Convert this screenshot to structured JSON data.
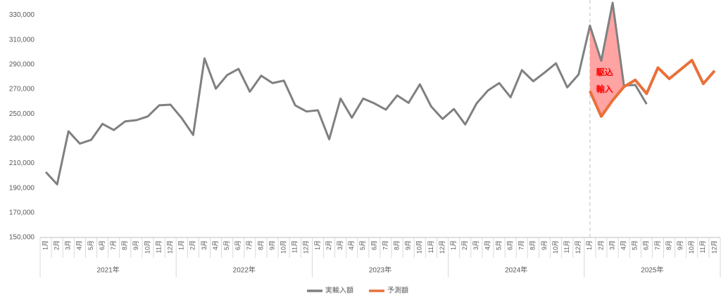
{
  "chart_data": {
    "type": "line",
    "categories": [
      "1月",
      "2月",
      "3月",
      "4月",
      "5月",
      "6月",
      "7月",
      "8月",
      "9月",
      "10月",
      "11月",
      "12月",
      "1月",
      "2月",
      "3月",
      "4月",
      "5月",
      "6月",
      "7月",
      "8月",
      "9月",
      "10月",
      "11月",
      "12月",
      "1月",
      "2月",
      "3月",
      "4月",
      "5月",
      "6月",
      "7月",
      "8月",
      "9月",
      "10月",
      "11月",
      "12月",
      "1月",
      "2月",
      "3月",
      "4月",
      "5月",
      "6月",
      "7月",
      "8月",
      "9月",
      "10月",
      "11月",
      "12月",
      "1月",
      "2月",
      "3月",
      "4月",
      "5月",
      "6月",
      "7月",
      "8月",
      "9月",
      "10月",
      "11月",
      "12月"
    ],
    "year_groups": [
      "2021年",
      "2022年",
      "2023年",
      "2024年",
      "2025年"
    ],
    "series": [
      {
        "name": "実輸入額",
        "color": "#808080",
        "values": [
          203000,
          193000,
          236000,
          226000,
          229000,
          242000,
          237000,
          244000,
          245000,
          248000,
          257000,
          257500,
          246500,
          233000,
          295000,
          270500,
          281500,
          286500,
          268000,
          281000,
          275000,
          277000,
          257000,
          252000,
          253000,
          229500,
          262500,
          247000,
          262500,
          258500,
          253500,
          265000,
          259000,
          274000,
          256000,
          246000,
          254000,
          241500,
          258500,
          269000,
          275000,
          263500,
          285500,
          276500,
          283500,
          291000,
          271500,
          282000,
          321500,
          293000,
          340000,
          273000,
          273500,
          258000,
          null,
          null,
          null,
          null,
          null,
          null
        ]
      },
      {
        "name": "予測額",
        "color": "#e9703a",
        "values": [
          null,
          null,
          null,
          null,
          null,
          null,
          null,
          null,
          null,
          null,
          null,
          null,
          null,
          null,
          null,
          null,
          null,
          null,
          null,
          null,
          null,
          null,
          null,
          null,
          null,
          null,
          null,
          null,
          null,
          null,
          null,
          null,
          null,
          null,
          null,
          null,
          null,
          null,
          null,
          null,
          null,
          null,
          null,
          null,
          null,
          null,
          null,
          null,
          268500,
          248000,
          261000,
          272000,
          277500,
          266500,
          287500,
          278500,
          286000,
          293500,
          274500,
          285000
        ]
      }
    ],
    "annotations": [
      "駆込",
      "輸入"
    ],
    "ylim": [
      150000,
      340000
    ],
    "yticks": [
      {
        "value": 150000,
        "label": "150,000"
      },
      {
        "value": 170000,
        "label": "170,000"
      },
      {
        "value": 190000,
        "label": "190,000"
      },
      {
        "value": 210000,
        "label": "210,000"
      },
      {
        "value": 230000,
        "label": "230,000"
      },
      {
        "value": 250000,
        "label": "250,000"
      },
      {
        "value": 270000,
        "label": "270,000"
      },
      {
        "value": 290000,
        "label": "290,000"
      },
      {
        "value": 310000,
        "label": "310,000"
      },
      {
        "value": 330000,
        "label": "330,000"
      }
    ],
    "grid": false,
    "legend": "bottom"
  }
}
